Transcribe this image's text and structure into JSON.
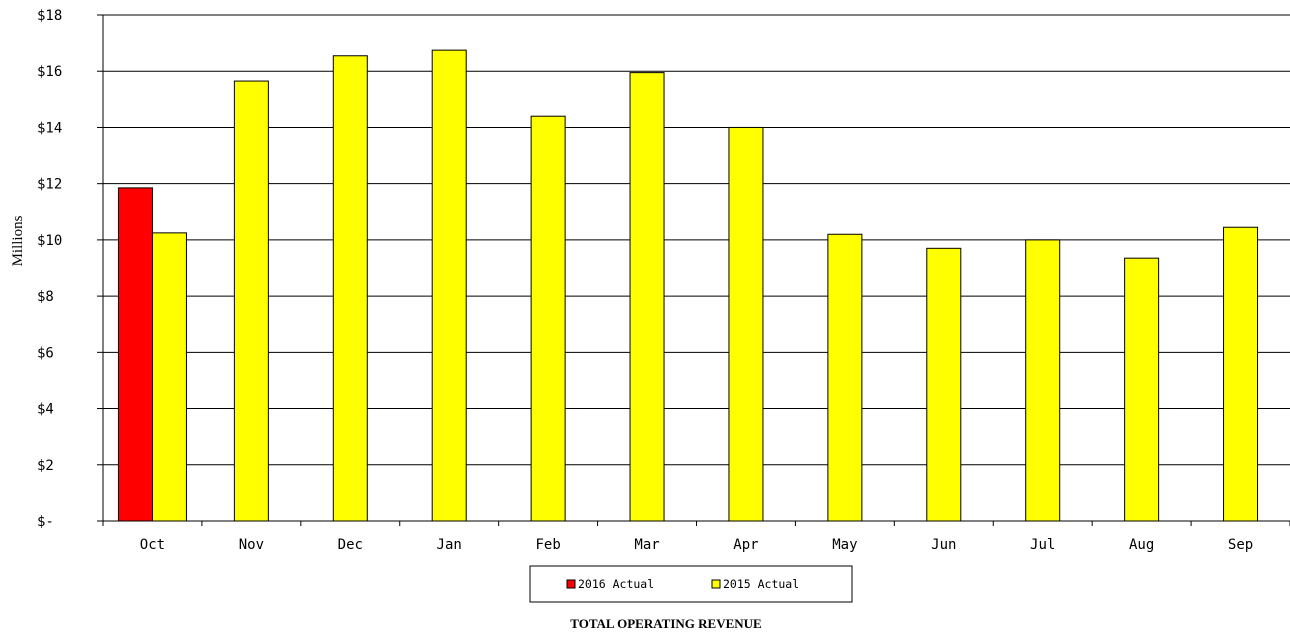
{
  "chart_data": {
    "type": "bar",
    "title": "TOTAL OPERATING REVENUE",
    "ylabel": "Millions",
    "xlabel": "",
    "ylim": [
      0,
      18
    ],
    "yticks": [
      0,
      2,
      4,
      6,
      8,
      10,
      12,
      14,
      16,
      18
    ],
    "ytick_labels": [
      "$-",
      "$2",
      "$4",
      "$6",
      "$8",
      "$10",
      "$12",
      "$14",
      "$16",
      "$18"
    ],
    "categories": [
      "Oct",
      "Nov",
      "Dec",
      "Jan",
      "Feb",
      "Mar",
      "Apr",
      "May",
      "Jun",
      "Jul",
      "Aug",
      "Sep"
    ],
    "grid": true,
    "legend_position": "bottom-center",
    "series": [
      {
        "name": "2016 Actual",
        "color": "#ff0000",
        "values": [
          11.85,
          null,
          null,
          null,
          null,
          null,
          null,
          null,
          null,
          null,
          null,
          null
        ]
      },
      {
        "name": "2015 Actual",
        "color": "#ffff00",
        "values": [
          10.25,
          15.65,
          16.55,
          16.75,
          14.4,
          15.95,
          14.0,
          10.2,
          9.7,
          10.0,
          9.35,
          10.45
        ]
      }
    ]
  }
}
